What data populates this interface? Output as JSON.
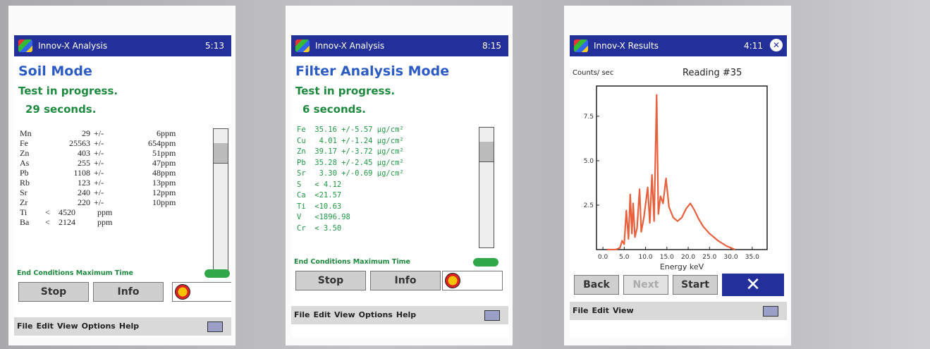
{
  "screens": [
    {
      "title": "Innov-X Analysis",
      "time": "5:13",
      "mode": "Soil Mode",
      "status": "Test in progress.",
      "elapsed": "29 seconds.",
      "results": [
        [
          "Mn",
          "29",
          "+/-",
          "6",
          "ppm"
        ],
        [
          "Fe",
          "25563",
          "+/-",
          "654",
          "ppm"
        ],
        [
          "Zn",
          "403",
          "+/-",
          "51",
          "ppm"
        ],
        [
          "As",
          "255",
          "+/-",
          "47",
          "ppm"
        ],
        [
          "Pb",
          "1108",
          "+/-",
          "48",
          "ppm"
        ],
        [
          "Rb",
          "123",
          "+/-",
          "13",
          "ppm"
        ],
        [
          "Sr",
          "240",
          "+/-",
          "12",
          "ppm"
        ],
        [
          "Zr",
          "220",
          "+/-",
          "10",
          "ppm"
        ],
        [
          "Ti",
          "<",
          "4520",
          "ppm"
        ],
        [
          "Ba",
          "<",
          "2124",
          "ppm"
        ]
      ],
      "end_conditions": "End Conditions Maximum Time",
      "buttons": [
        "Stop",
        "Info"
      ],
      "menu": [
        "File",
        "Edit",
        "View",
        "Options",
        "Help"
      ]
    },
    {
      "title": "Innov-X Analysis",
      "time": "8:15",
      "mode": "Filter Analysis Mode",
      "status": "Test in progress.",
      "elapsed": "6 seconds.",
      "results": [
        "Fe  35.16 +/-5.57 µg/cm²",
        "Cu   4.01 +/-1.24 µg/cm²",
        "Zn  39.17 +/-3.72 µg/cm²",
        "Pb  35.28 +/-2.45 µg/cm²",
        "Sr   3.30 +/-0.69 µg/cm²",
        "S   < 4.12",
        "Ca  <21.57",
        "Ti  <10.63",
        "V   <1896.98",
        "Cr  < 3.50"
      ],
      "end_conditions": "End Conditions Maximum Time",
      "buttons": [
        "Stop",
        "Info"
      ],
      "menu": [
        "File",
        "Edit",
        "View",
        "Options",
        "Help"
      ]
    },
    {
      "title": "Innov-X Results",
      "time": "4:11",
      "y_label": "Counts/ sec",
      "reading": "Reading #35",
      "x_label": "Energy keV",
      "spectrum": {
        "color": "#e8603c",
        "x": [
          1,
          2,
          3,
          4,
          4.5,
          5,
          5.5,
          6,
          6.4,
          6.8,
          7.1,
          7.5,
          8,
          8.6,
          9,
          9.6,
          10.5,
          11,
          11.5,
          12,
          12.6,
          13,
          13.5,
          14.1,
          14.8,
          15.5,
          16.5,
          17.5,
          18.5,
          19.5,
          20.5,
          21.5,
          22.5,
          23.5,
          25,
          27,
          29,
          31
        ],
        "values": [
          0,
          0,
          0,
          0.1,
          0.5,
          0.3,
          2.2,
          0.6,
          3.1,
          0.9,
          2.6,
          0.7,
          1.2,
          3.4,
          1.0,
          1.8,
          3.5,
          1.5,
          4.2,
          1.6,
          8.7,
          2.0,
          3.0,
          2.6,
          4.0,
          2.4,
          1.8,
          1.6,
          1.8,
          2.3,
          2.6,
          2.2,
          1.7,
          1.3,
          0.9,
          0.5,
          0.2,
          0
        ],
        "xlim": [
          -1.5,
          38.5
        ],
        "ylim": [
          0,
          9.2
        ],
        "xticks": [
          {
            "value": 0,
            "label": "0.0"
          },
          {
            "value": 5,
            "label": "5.0"
          },
          {
            "value": 10,
            "label": "10.0"
          },
          {
            "value": 15,
            "label": "15.0"
          },
          {
            "value": 20,
            "label": "20.0"
          },
          {
            "value": 25,
            "label": "25.0"
          },
          {
            "value": 30,
            "label": "30.0"
          },
          {
            "value": 35,
            "label": "35.0"
          }
        ],
        "yticks": [
          2.5,
          {
            "value": 5,
            "label": "5.0"
          },
          7.5
        ]
      },
      "buttons": [
        "Back",
        "Next",
        "Start"
      ],
      "menu": [
        "File",
        "Edit",
        "View"
      ]
    }
  ]
}
